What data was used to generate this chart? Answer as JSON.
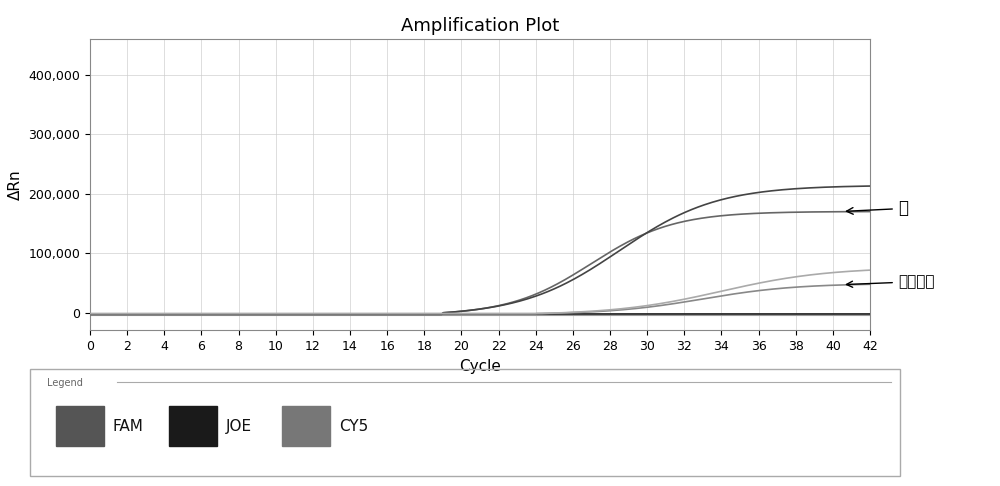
{
  "title": "Amplification Plot",
  "xlabel": "Cycle",
  "ylabel": "ΔRn",
  "xlim": [
    0,
    42
  ],
  "ylim": [
    -30000,
    460000
  ],
  "yticks": [
    0,
    100000,
    200000,
    300000,
    400000
  ],
  "ytick_labels": [
    "0",
    "100,000",
    "200,000",
    "300,000",
    "400,000"
  ],
  "xticks": [
    0,
    2,
    4,
    6,
    8,
    10,
    12,
    14,
    16,
    18,
    20,
    22,
    24,
    26,
    28,
    30,
    32,
    34,
    36,
    38,
    40,
    42
  ],
  "annotation_cow": "牛",
  "annotation_internal": "内标质控",
  "legend_labels": [
    "FAM",
    "JOE",
    "CY5"
  ],
  "legend_colors": [
    "#555555",
    "#1a1a1a",
    "#777777"
  ],
  "background_color": "#ffffff",
  "grid_color": "#cccccc",
  "title_fontsize": 13,
  "axis_fontsize": 11,
  "tick_fontsize": 9
}
